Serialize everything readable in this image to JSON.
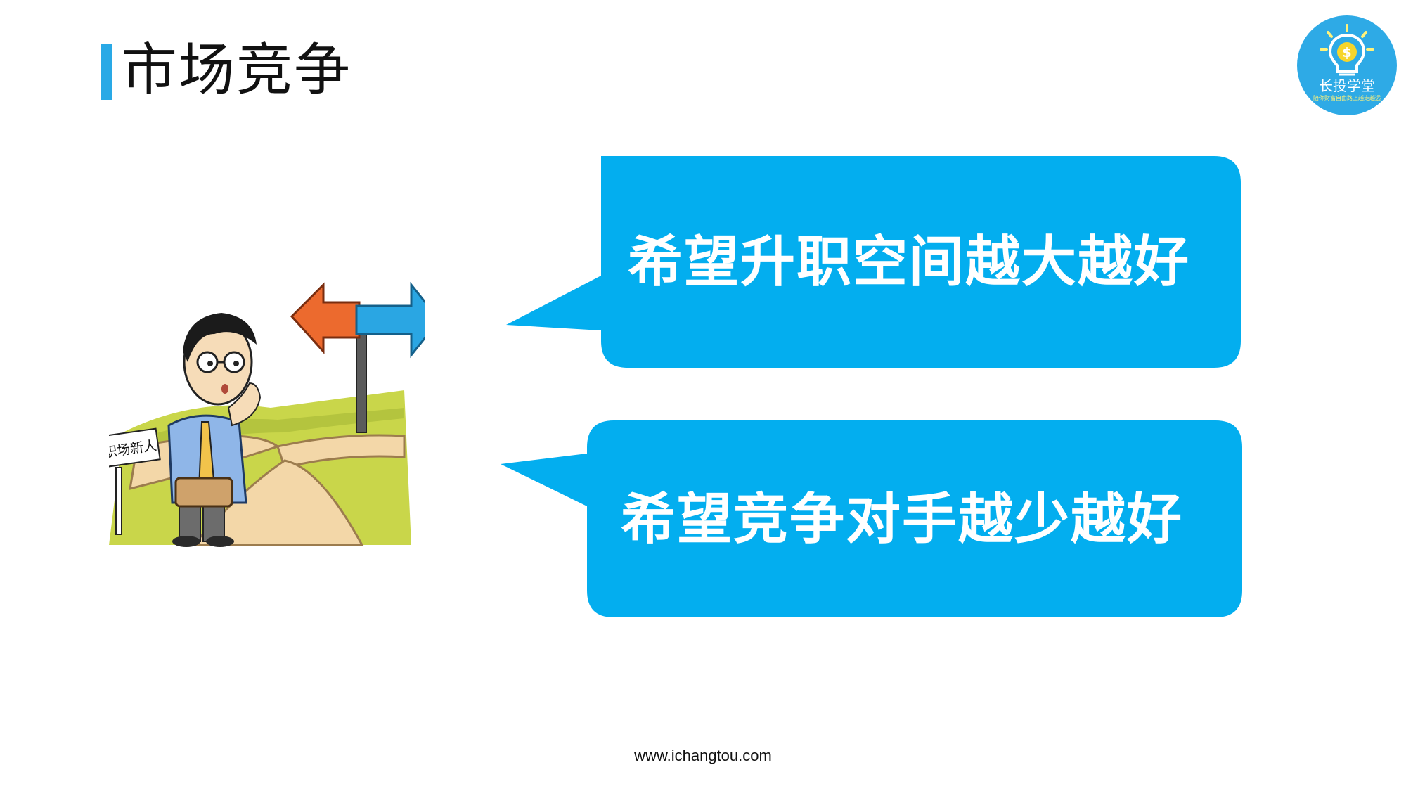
{
  "slide": {
    "title": "市场竞争",
    "illustration_sign": "职场新人",
    "bubbles": [
      {
        "text": "希望升职空间越大越好"
      },
      {
        "text": "希望竞争对手越少越好"
      }
    ],
    "footer_url": "www.ichangtou.com"
  },
  "logo": {
    "name": "长投学堂",
    "tagline": "陪你财富自由路上越走越远"
  },
  "colors": {
    "accent": "#29a9e6",
    "bubble": "#03aeef",
    "arrow_orange": "#ec6a2e"
  },
  "icons": {
    "logo": "lightbulb-coin-icon",
    "arrows": "direction-signpost-icon"
  }
}
